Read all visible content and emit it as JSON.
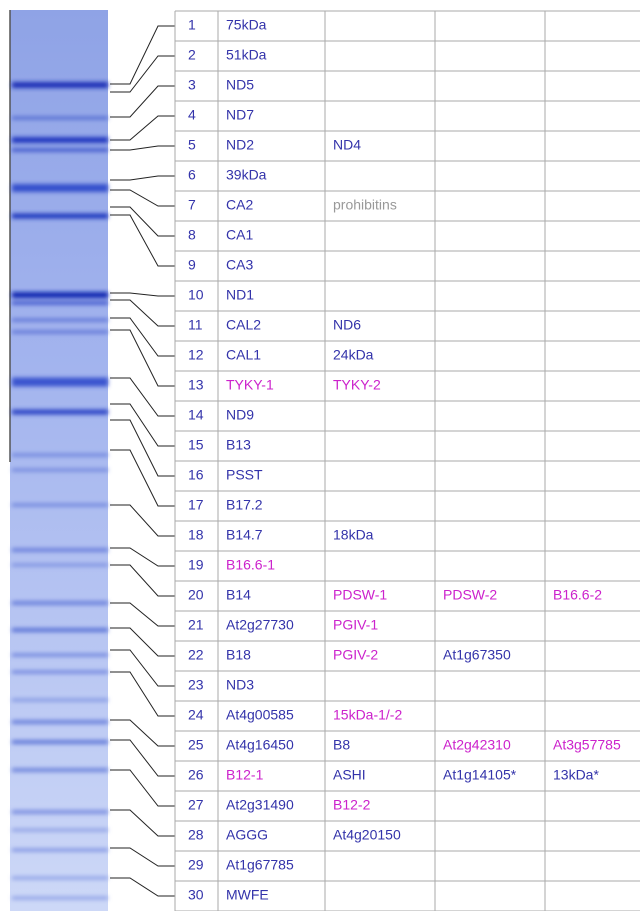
{
  "table": {
    "rows": [
      {
        "number": 1,
        "cells": [
          {
            "text": "75kDa",
            "color": "#3333aa"
          }
        ]
      },
      {
        "number": 2,
        "cells": [
          {
            "text": "51kDa",
            "color": "#3333aa"
          }
        ]
      },
      {
        "number": 3,
        "cells": [
          {
            "text": "ND5",
            "color": "#3333aa"
          }
        ]
      },
      {
        "number": 4,
        "cells": [
          {
            "text": "ND7",
            "color": "#3333aa"
          }
        ]
      },
      {
        "number": 5,
        "cells": [
          {
            "text": "ND2",
            "color": "#3333aa"
          },
          {
            "text": "ND4",
            "color": "#3333aa"
          }
        ]
      },
      {
        "number": 6,
        "cells": [
          {
            "text": "39kDa",
            "color": "#3333aa"
          }
        ]
      },
      {
        "number": 7,
        "cells": [
          {
            "text": "CA2",
            "color": "#3333aa"
          },
          {
            "text": "prohibitins",
            "color": "#999999"
          }
        ]
      },
      {
        "number": 8,
        "cells": [
          {
            "text": "CA1",
            "color": "#3333aa"
          }
        ]
      },
      {
        "number": 9,
        "cells": [
          {
            "text": "CA3",
            "color": "#3333aa"
          }
        ]
      },
      {
        "number": 10,
        "cells": [
          {
            "text": "ND1",
            "color": "#3333aa"
          }
        ]
      },
      {
        "number": 11,
        "cells": [
          {
            "text": "CAL2",
            "color": "#3333aa"
          },
          {
            "text": "ND6",
            "color": "#3333aa"
          }
        ]
      },
      {
        "number": 12,
        "cells": [
          {
            "text": "CAL1",
            "color": "#3333aa"
          },
          {
            "text": "24kDa",
            "color": "#3333aa"
          }
        ]
      },
      {
        "number": 13,
        "cells": [
          {
            "text": "TYKY-1",
            "color": "#cc22cc"
          },
          {
            "text": "TYKY-2",
            "color": "#cc22cc"
          }
        ]
      },
      {
        "number": 14,
        "cells": [
          {
            "text": "ND9",
            "color": "#3333aa"
          }
        ]
      },
      {
        "number": 15,
        "cells": [
          {
            "text": "B13",
            "color": "#3333aa"
          }
        ]
      },
      {
        "number": 16,
        "cells": [
          {
            "text": "PSST",
            "color": "#3333aa"
          }
        ]
      },
      {
        "number": 17,
        "cells": [
          {
            "text": "B17.2",
            "color": "#3333aa"
          }
        ]
      },
      {
        "number": 18,
        "cells": [
          {
            "text": "B14.7",
            "color": "#3333aa"
          },
          {
            "text": "18kDa",
            "color": "#3333aa"
          }
        ]
      },
      {
        "number": 19,
        "cells": [
          {
            "text": "B16.6-1",
            "color": "#cc22cc"
          }
        ]
      },
      {
        "number": 20,
        "cells": [
          {
            "text": "B14",
            "color": "#3333aa"
          },
          {
            "text": "PDSW-1",
            "color": "#cc22cc"
          },
          {
            "text": "PDSW-2",
            "color": "#cc22cc"
          },
          {
            "text": "B16.6-2",
            "color": "#cc22cc"
          }
        ]
      },
      {
        "number": 21,
        "cells": [
          {
            "text": "At2g27730",
            "color": "#3333aa"
          },
          {
            "text": "PGIV-1",
            "color": "#cc22cc"
          }
        ]
      },
      {
        "number": 22,
        "cells": [
          {
            "text": "B18",
            "color": "#3333aa"
          },
          {
            "text": "PGIV-2",
            "color": "#cc22cc"
          },
          {
            "text": "At1g67350",
            "color": "#3333aa"
          }
        ]
      },
      {
        "number": 23,
        "cells": [
          {
            "text": "ND3",
            "color": "#3333aa"
          }
        ]
      },
      {
        "number": 24,
        "cells": [
          {
            "text": "At4g00585",
            "color": "#3333aa"
          },
          {
            "text": "15kDa-1/-2",
            "color": "#cc22cc"
          }
        ]
      },
      {
        "number": 25,
        "cells": [
          {
            "text": "At4g16450",
            "color": "#3333aa"
          },
          {
            "text": "B8",
            "color": "#3333aa"
          },
          {
            "text": "At2g42310",
            "color": "#cc22cc"
          },
          {
            "text": "At3g57785",
            "color": "#cc22cc"
          }
        ]
      },
      {
        "number": 26,
        "cells": [
          {
            "text": "B12-1",
            "color": "#cc22cc"
          },
          {
            "text": "ASHI",
            "color": "#3333aa"
          },
          {
            "text": "At1g14105*",
            "color": "#3333aa"
          },
          {
            "text": "13kDa*",
            "color": "#3333aa"
          }
        ]
      },
      {
        "number": 27,
        "cells": [
          {
            "text": "At2g31490",
            "color": "#3333aa"
          },
          {
            "text": "B12-2",
            "color": "#cc22cc"
          }
        ]
      },
      {
        "number": 28,
        "cells": [
          {
            "text": "AGGG",
            "color": "#3333aa"
          },
          {
            "text": "At4g20150",
            "color": "#3333aa"
          }
        ]
      },
      {
        "number": 29,
        "cells": [
          {
            "text": "At1g67785",
            "color": "#3333aa"
          }
        ]
      },
      {
        "number": 30,
        "cells": [
          {
            "text": "MWFE",
            "color": "#3333aa"
          }
        ]
      }
    ]
  }
}
